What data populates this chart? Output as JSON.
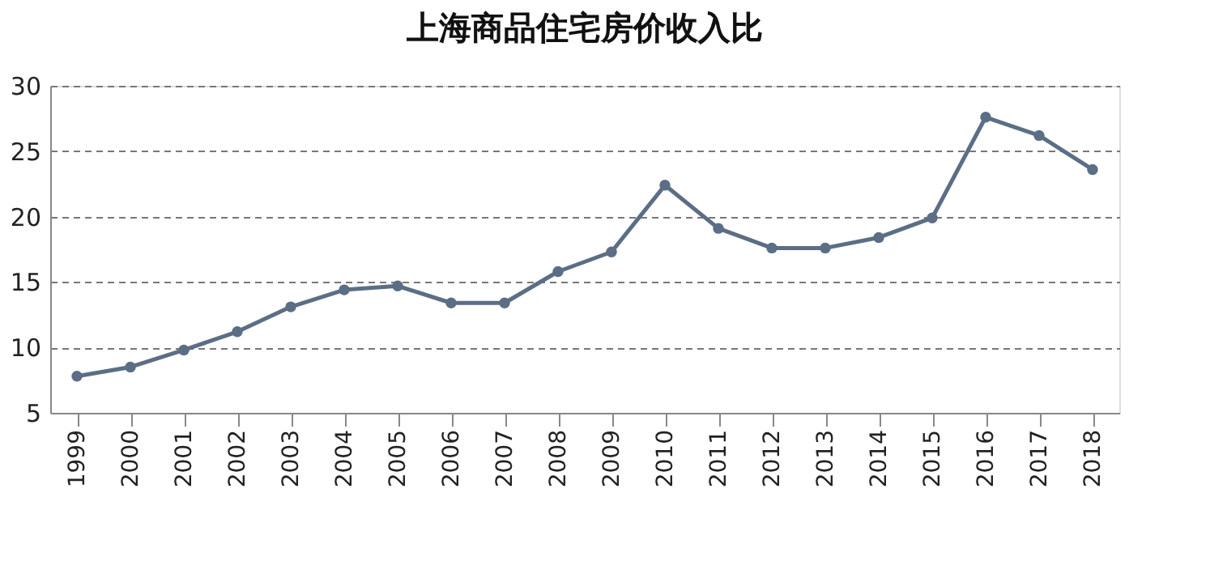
{
  "chart_data": {
    "type": "line",
    "title": "上海商品住宅房价收入比",
    "categories": [
      "1999",
      "2000",
      "2001",
      "2002",
      "2003",
      "2004",
      "2005",
      "2006",
      "2007",
      "2008",
      "2009",
      "2010",
      "2011",
      "2012",
      "2013",
      "2014",
      "2015",
      "2016",
      "2017",
      "2018"
    ],
    "series": [
      {
        "color": "#5b6e85",
        "values": [
          7.8,
          8.5,
          9.8,
          11.2,
          13.1,
          14.4,
          14.7,
          13.4,
          13.4,
          15.8,
          17.3,
          22.4,
          19.1,
          17.6,
          17.6,
          18.4,
          19.9,
          27.6,
          26.2,
          23.6
        ]
      }
    ],
    "ylim": [
      5,
      30
    ],
    "yticks": [
      5,
      10,
      15,
      20,
      25,
      30
    ],
    "grid": "y",
    "marker": "circle",
    "line_style": "solid"
  }
}
